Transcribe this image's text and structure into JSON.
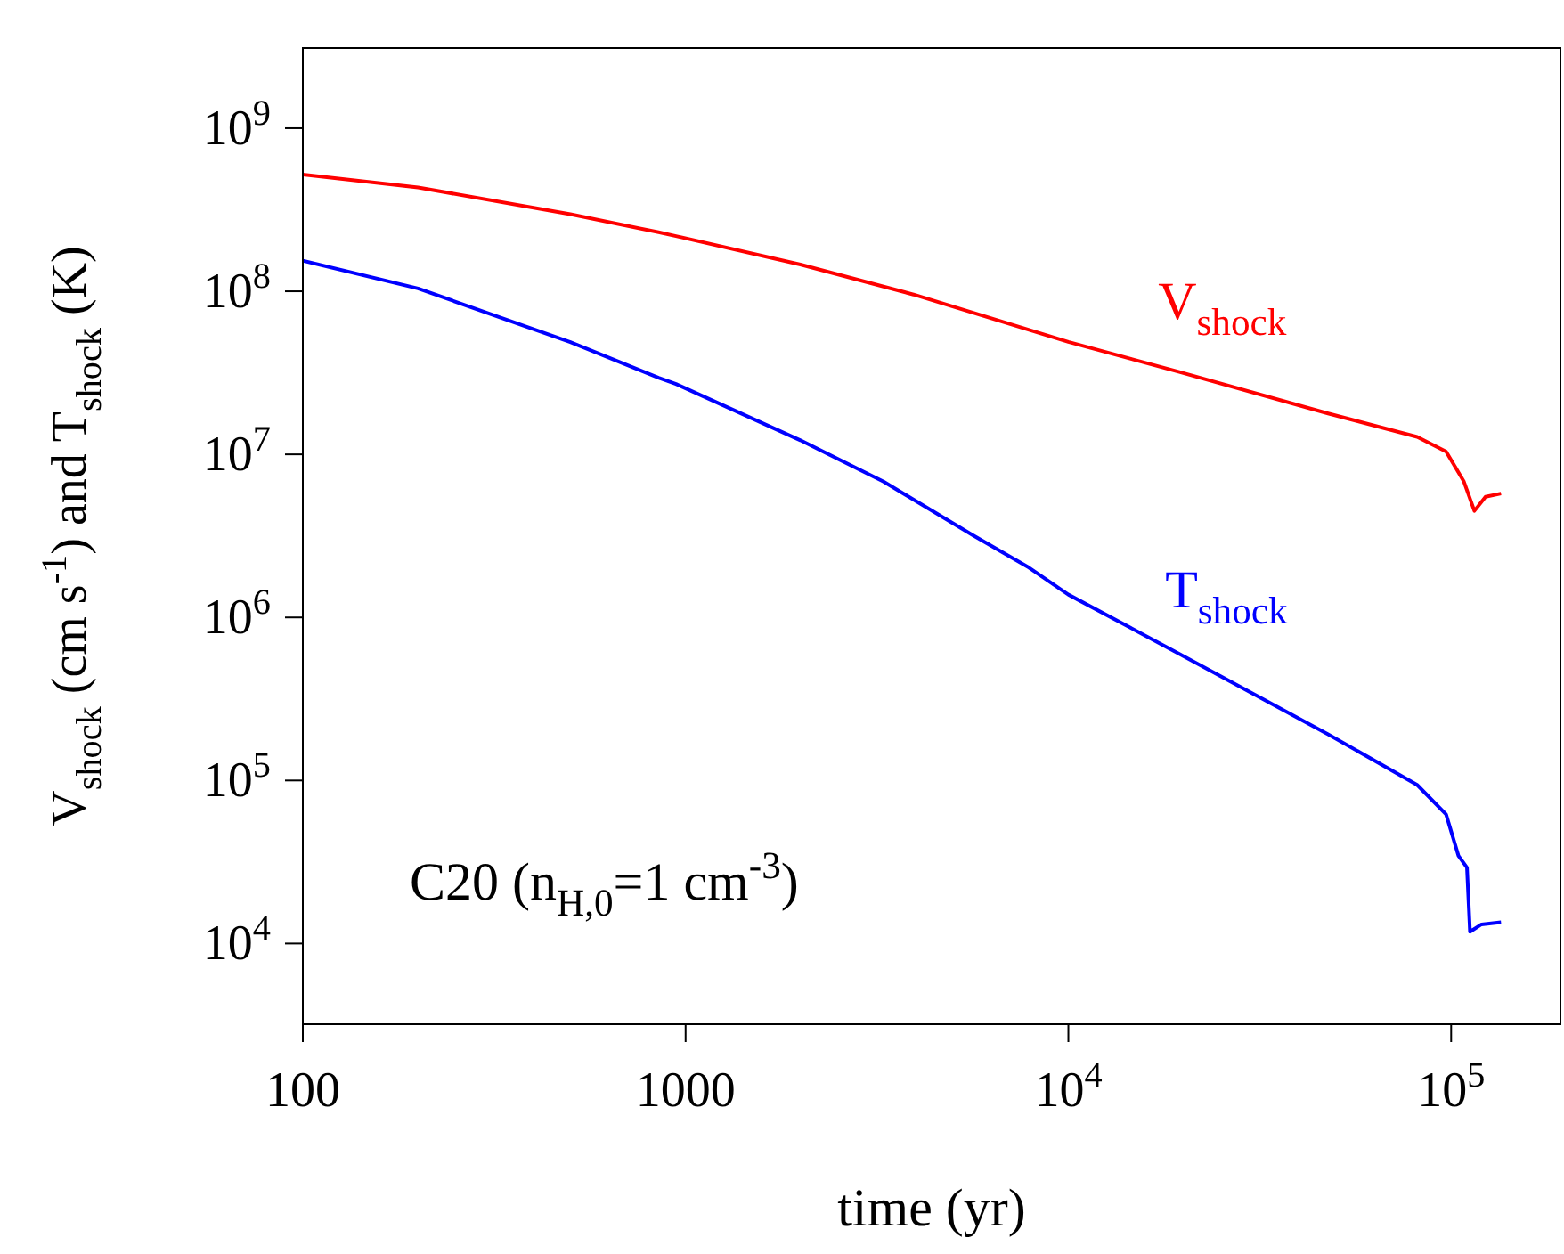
{
  "chart_data": {
    "type": "line",
    "xlabel": "time (yr)",
    "ylabel": "V$_{shock}$ (cm s$^{-1}$) and T$_{shock}$ (K)",
    "log": "xy",
    "marker": "none",
    "line_style": "solid",
    "xlim": [
      100,
      193000
    ],
    "xticks": [
      100,
      1000,
      {
        "value": 10000,
        "label": "10$^{4}$"
      },
      {
        "value": 100000,
        "label": "10$^{5}$"
      }
    ],
    "ylim": [
      3200,
      3100000000
    ],
    "yticks": [
      {
        "value": 10000,
        "label": "10$^{4}$"
      },
      {
        "value": 100000,
        "label": "10$^{5}$"
      },
      {
        "value": 1000000,
        "label": "10$^{6}$"
      },
      {
        "value": 10000000,
        "label": "10$^{7}$"
      },
      {
        "value": 100000000,
        "label": "10$^{8}$"
      },
      {
        "value": 1000000000,
        "label": "10$^{9}$"
      }
    ],
    "annotations": [
      "C20 (n$_{H,0}$=1 cm$^{-3}$)"
    ],
    "series": [
      {
        "name": "V$_{shock}$",
        "color": "#ff0000",
        "x": [
          100,
          200,
          500,
          850,
          944,
          1995,
          3940,
          10000,
          19500,
          47700,
          81500,
          97000,
          108000,
          115000,
          123000,
          135000
        ],
        "values": [
          520000000,
          433000000,
          297000000,
          230000000,
          218000000,
          146000000,
          95500000,
          48900000,
          32000000,
          17800000,
          12800000,
          10400000,
          6800000,
          4500000,
          5500000,
          5750000
        ]
      },
      {
        "name": "T$_{shock}$",
        "color": "#0000ff",
        "x": [
          100,
          200,
          500,
          850,
          944,
          1995,
          3290,
          5620,
          7890,
          10000,
          19500,
          47700,
          81500,
          97000,
          104500,
          110000,
          112000,
          120000,
          135000
        ],
        "values": [
          154000000,
          104000000,
          48800000,
          29500000,
          27000000,
          12200000,
          6800000,
          3200000,
          2020000,
          1380000,
          597000,
          192000,
          94000,
          62000,
          34500,
          29200,
          11800,
          13100,
          13500
        ]
      }
    ]
  }
}
